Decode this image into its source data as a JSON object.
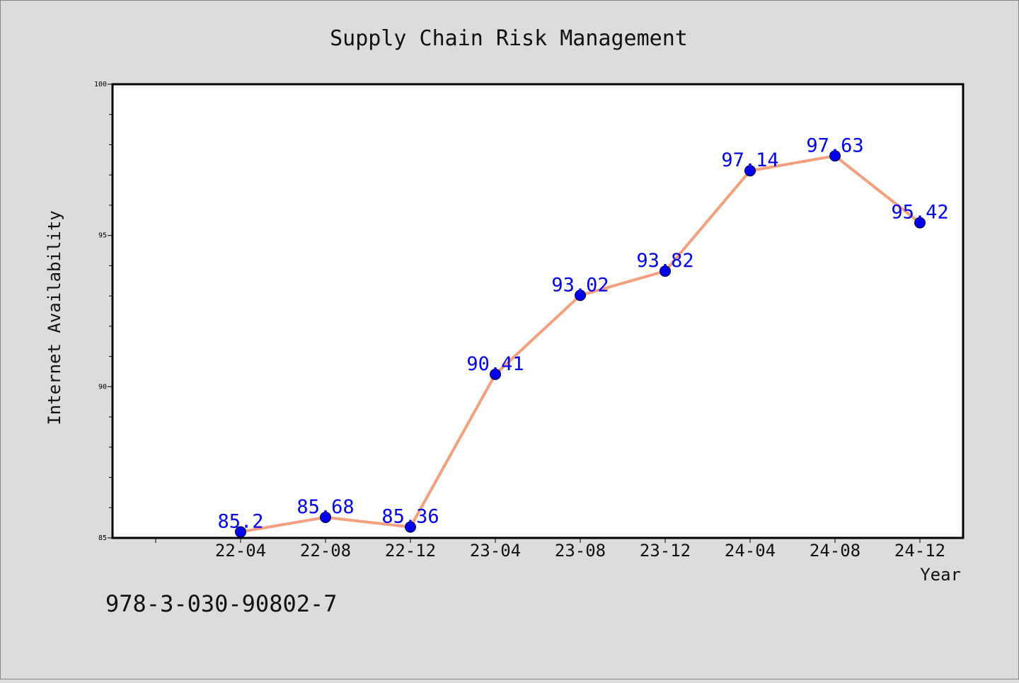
{
  "chart_data": {
    "type": "line",
    "title": "Supply Chain Risk Management",
    "xlabel": "Year",
    "ylabel": "Internet Availability",
    "categories": [
      "22-04",
      "22-08",
      "22-12",
      "23-04",
      "23-08",
      "23-12",
      "24-04",
      "24-08",
      "24-12"
    ],
    "series": [
      {
        "values": [
          85.2,
          85.68,
          85.36,
          90.41,
          93.02,
          93.82,
          97.14,
          97.63,
          95.42
        ],
        "labels": [
          "85.2",
          "85.68",
          "85.36",
          "90.41",
          "93.02",
          "93.82",
          "97.14",
          "97.63",
          "95.42"
        ],
        "line_color": "#f4a07e",
        "marker_color": "#0000ee"
      }
    ],
    "ylim": [
      85,
      100
    ],
    "yticks": [
      85,
      90,
      95,
      100
    ],
    "ytick_labels": [
      "85",
      "90",
      "95",
      "100"
    ],
    "grid": false,
    "legend": "none",
    "label_color": "#0000ee",
    "background_color": "#dcdcdc",
    "plot_background_color": "#ffffff"
  },
  "footer": {
    "isbn": "978-3-030-90802-7"
  }
}
